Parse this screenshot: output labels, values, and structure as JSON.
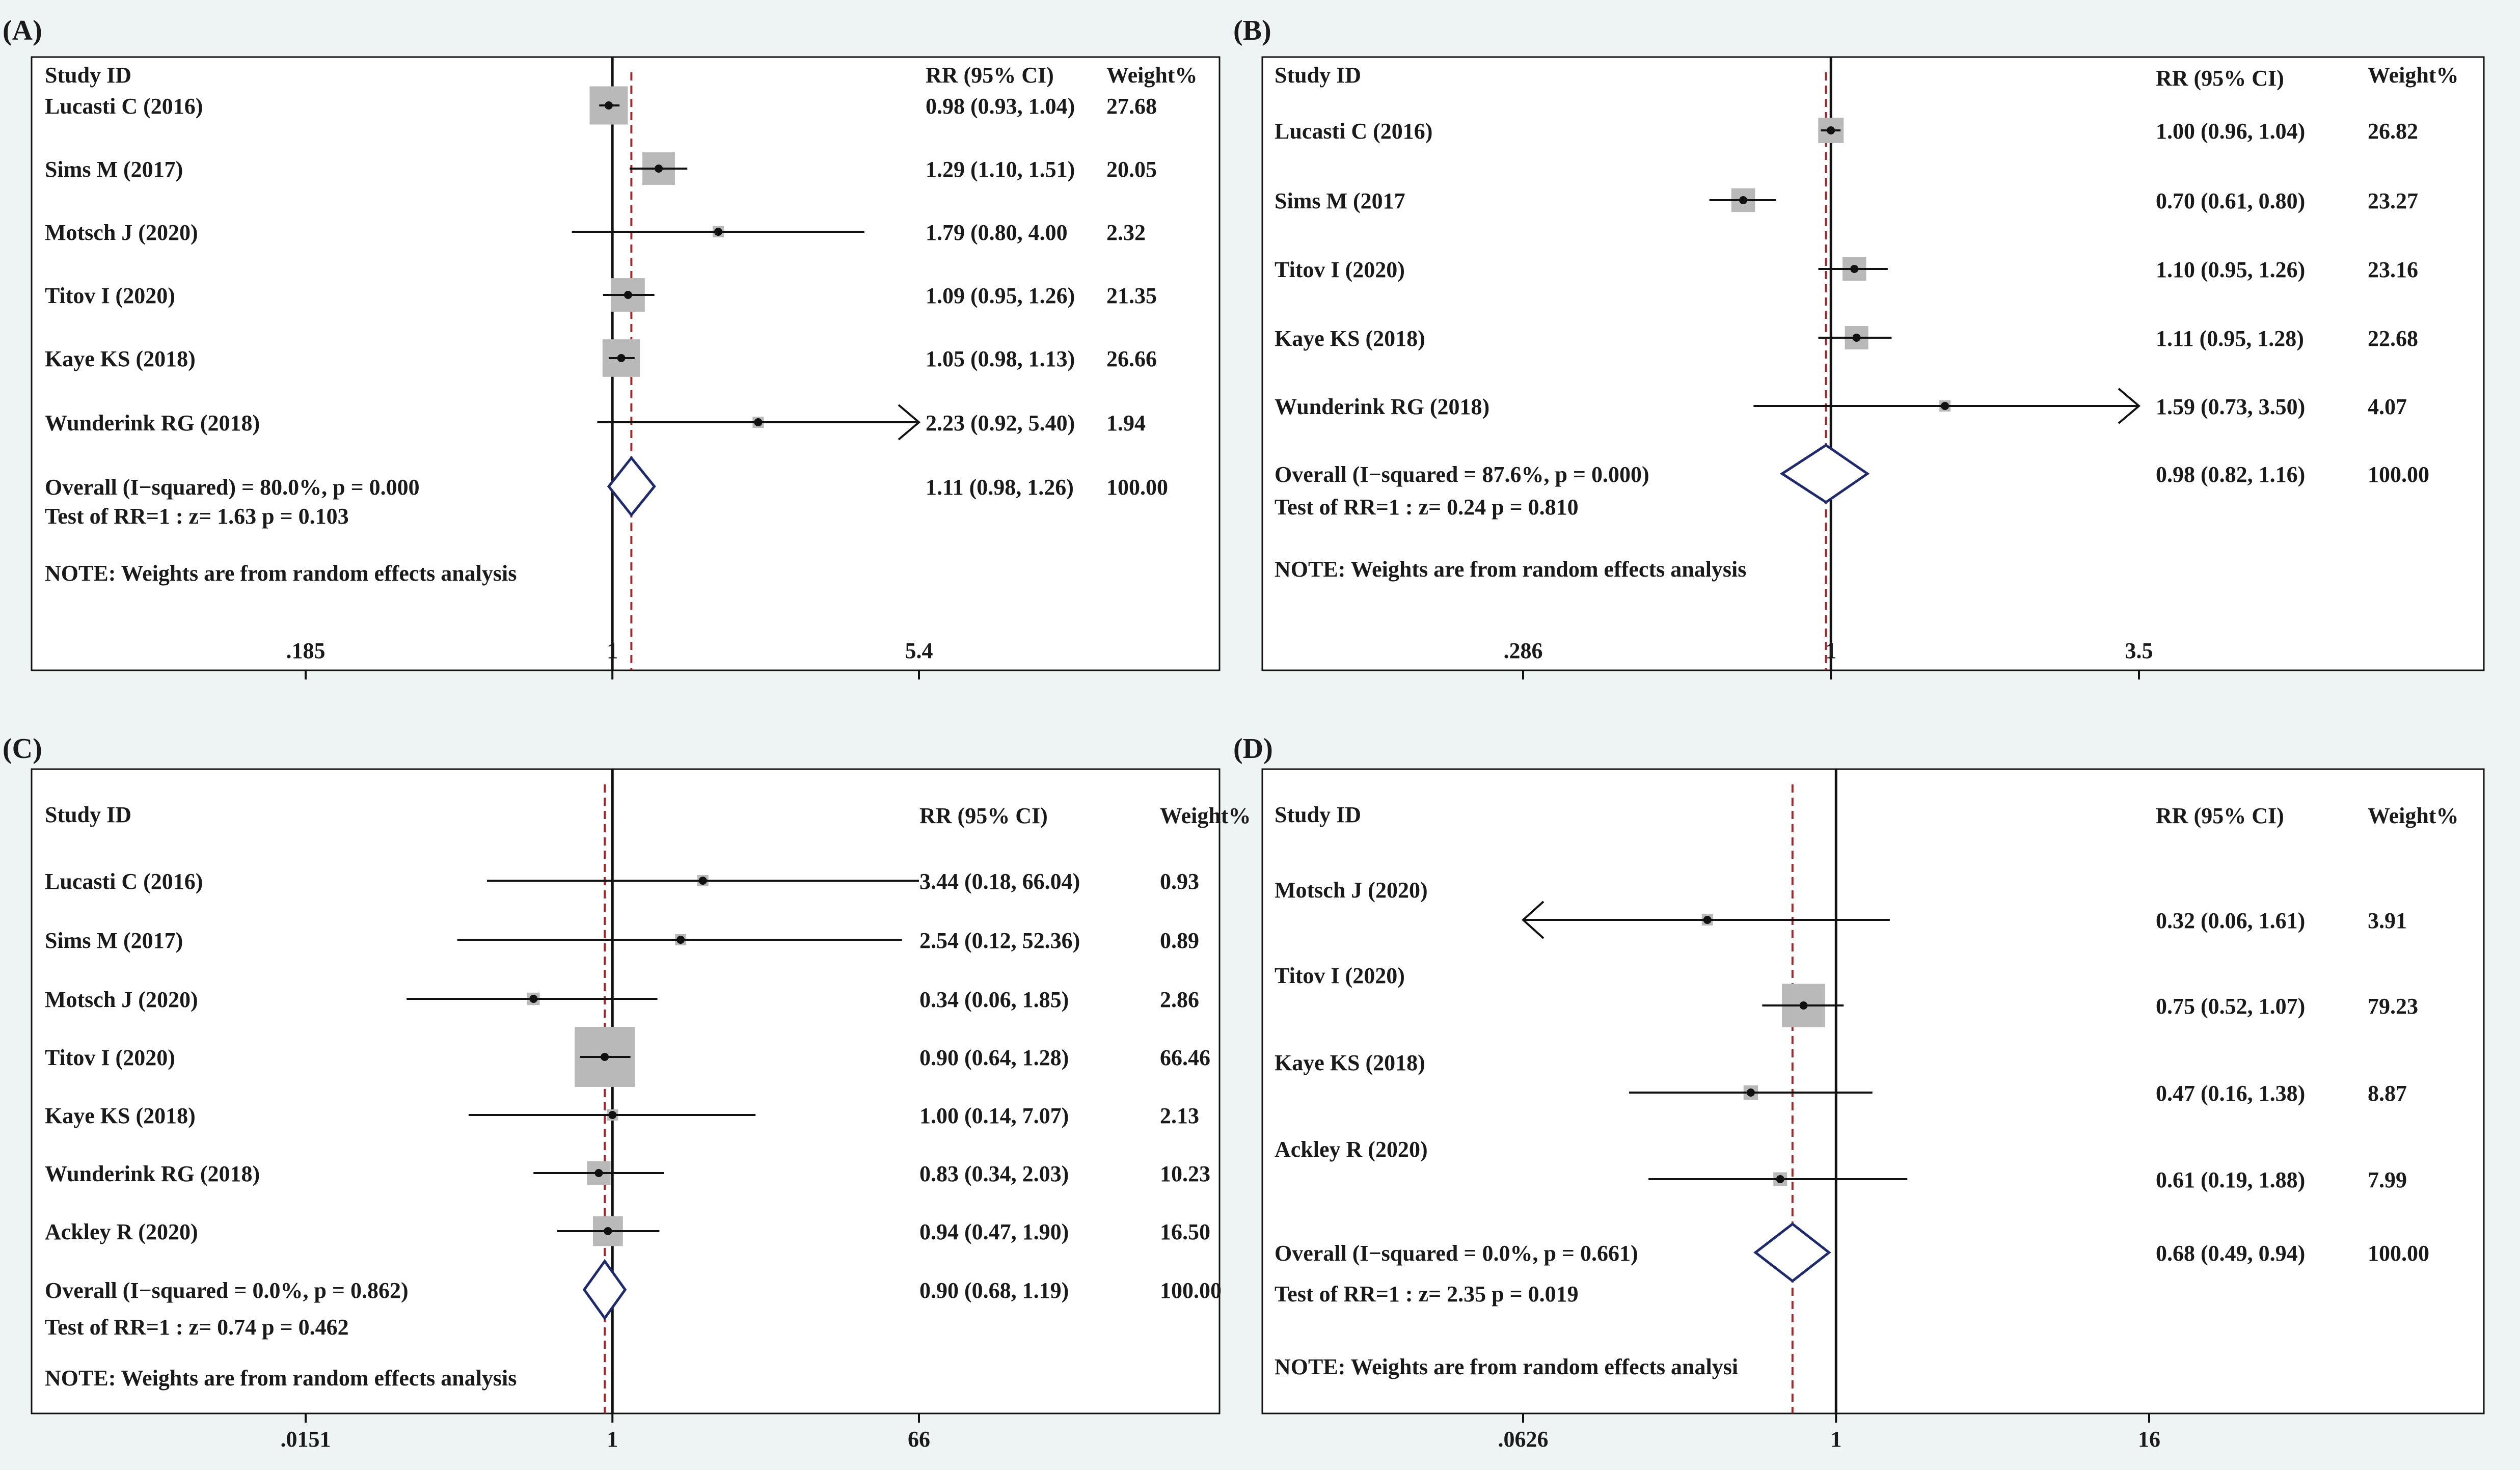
{
  "colors": {
    "background": "#eef4f4",
    "panel": "#ffffff",
    "box": "#b9b9b9",
    "diamond": "#1f2a6b",
    "dashed": "#a0282d",
    "line": "#111111"
  },
  "chart_data": [
    {
      "type": "forest",
      "panel_label": "(A)",
      "headers": {
        "study": "Study ID",
        "ci": "RR (95% CI)",
        "weight": "Weight%"
      },
      "null_value": 1,
      "pooled_rr": 1.11,
      "xscale": "log",
      "xlim": [
        0.185,
        5.4
      ],
      "ticks": [
        {
          "value": 0.185,
          "label": ".185"
        },
        {
          "value": 1,
          "label": "1"
        },
        {
          "value": 5.4,
          "label": "5.4"
        }
      ],
      "studies": [
        {
          "name": "Lucasti C (2016)",
          "rr": 0.98,
          "lo": 0.93,
          "hi": 1.04,
          "ci_text": "0.98 (0.93, 1.04)",
          "weight": 27.68,
          "weight_text": "27.68"
        },
        {
          "name": "Sims M (2017)",
          "rr": 1.29,
          "lo": 1.1,
          "hi": 1.51,
          "ci_text": "1.29 (1.10, 1.51)",
          "weight": 20.05,
          "weight_text": "20.05"
        },
        {
          "name": "Motsch J (2020)",
          "rr": 1.79,
          "lo": 0.8,
          "hi": 4.0,
          "ci_text": "1.79 (0.80, 4.00",
          "weight": 2.32,
          "weight_text": "2.32"
        },
        {
          "name": "Titov I (2020)",
          "rr": 1.09,
          "lo": 0.95,
          "hi": 1.26,
          "ci_text": "1.09 (0.95, 1.26)",
          "weight": 21.35,
          "weight_text": "21.35"
        },
        {
          "name": "Kaye KS (2018)",
          "rr": 1.05,
          "lo": 0.98,
          "hi": 1.13,
          "ci_text": "1.05 (0.98, 1.13)",
          "weight": 26.66,
          "weight_text": "26.66"
        },
        {
          "name": "Wunderink RG (2018)",
          "rr": 2.23,
          "lo": 0.92,
          "hi": 5.4,
          "ci_text": "2.23 (0.92, 5.40)",
          "weight": 1.94,
          "weight_text": "1.94",
          "arrow_right": true
        }
      ],
      "overall": {
        "name": "Overall  (I−squared) = 80.0%, p = 0.000",
        "rr": 1.11,
        "lo": 0.98,
        "hi": 1.26,
        "ci_text": "1.11 (0.98, 1.26)",
        "weight_text": "100.00"
      },
      "test_text": "Test of RR=1 : z=   1.63 p = 0.103",
      "note": "NOTE: Weights are from random effects analysis"
    },
    {
      "type": "forest",
      "panel_label": "(B)",
      "headers": {
        "study": "Study ID",
        "ci": "RR (95% CI)",
        "weight": "Weight%"
      },
      "null_value": 1,
      "pooled_rr": 0.98,
      "xscale": "log",
      "xlim": [
        0.286,
        3.5
      ],
      "ticks": [
        {
          "value": 0.286,
          "label": ".286"
        },
        {
          "value": 1,
          "label": "1"
        },
        {
          "value": 3.5,
          "label": "3.5"
        }
      ],
      "studies": [
        {
          "name": "Lucasti C (2016)",
          "rr": 1.0,
          "lo": 0.96,
          "hi": 1.04,
          "ci_text": "1.00 (0.96, 1.04)",
          "weight": 26.82,
          "weight_text": "26.82"
        },
        {
          "name": "Sims M (2017",
          "rr": 0.7,
          "lo": 0.61,
          "hi": 0.8,
          "ci_text": "0.70 (0.61, 0.80)",
          "weight": 23.27,
          "weight_text": "23.27"
        },
        {
          "name": "Titov I (2020)",
          "rr": 1.1,
          "lo": 0.95,
          "hi": 1.26,
          "ci_text": "1.10 (0.95, 1.26)",
          "weight": 23.16,
          "weight_text": "23.16"
        },
        {
          "name": "Kaye KS (2018)",
          "rr": 1.11,
          "lo": 0.95,
          "hi": 1.28,
          "ci_text": "1.11 (0.95, 1.28)",
          "weight": 22.68,
          "weight_text": "22.68"
        },
        {
          "name": "Wunderink RG (2018)",
          "rr": 1.59,
          "lo": 0.73,
          "hi": 3.5,
          "ci_text": "1.59 (0.73, 3.50)",
          "weight": 4.07,
          "weight_text": "4.07",
          "arrow_right": true
        }
      ],
      "overall": {
        "name": "Overall  (I−squared = 87.6%, p = 0.000)",
        "rr": 0.98,
        "lo": 0.82,
        "hi": 1.16,
        "ci_text": "0.98 (0.82, 1.16)",
        "weight_text": "100.00"
      },
      "test_text": "Test of RR=1 : z=   0.24 p = 0.810",
      "note": "NOTE: Weights are from random effects analysis"
    },
    {
      "type": "forest",
      "panel_label": "(C)",
      "headers": {
        "study": "Study ID",
        "ci": "RR (95% CI)",
        "weight": "Weight%"
      },
      "null_value": 1,
      "pooled_rr": 0.9,
      "xscale": "log",
      "xlim": [
        0.0151,
        66
      ],
      "ticks": [
        {
          "value": 0.0151,
          "label": ".0151"
        },
        {
          "value": 1,
          "label": "1"
        },
        {
          "value": 66,
          "label": "66"
        }
      ],
      "studies": [
        {
          "name": "Lucasti C (2016)",
          "rr": 3.44,
          "lo": 0.18,
          "hi": 66.04,
          "ci_text": "3.44 (0.18, 66.04)",
          "weight": 0.93,
          "weight_text": "0.93"
        },
        {
          "name": "Sims M (2017)",
          "rr": 2.54,
          "lo": 0.12,
          "hi": 52.36,
          "ci_text": "2.54 (0.12, 52.36)",
          "weight": 0.89,
          "weight_text": "0.89"
        },
        {
          "name": "Motsch J (2020)",
          "rr": 0.34,
          "lo": 0.06,
          "hi": 1.85,
          "ci_text": "0.34 (0.06, 1.85)",
          "weight": 2.86,
          "weight_text": "2.86"
        },
        {
          "name": "Titov I (2020)",
          "rr": 0.9,
          "lo": 0.64,
          "hi": 1.28,
          "ci_text": "0.90 (0.64, 1.28)",
          "weight": 66.46,
          "weight_text": "66.46"
        },
        {
          "name": "Kaye KS (2018)",
          "rr": 1.0,
          "lo": 0.14,
          "hi": 7.07,
          "ci_text": "1.00 (0.14, 7.07)",
          "weight": 2.13,
          "weight_text": "2.13"
        },
        {
          "name": "Wunderink RG (2018)",
          "rr": 0.83,
          "lo": 0.34,
          "hi": 2.03,
          "ci_text": "0.83 (0.34, 2.03)",
          "weight": 10.23,
          "weight_text": "10.23"
        },
        {
          "name": "Ackley R (2020)",
          "rr": 0.94,
          "lo": 0.47,
          "hi": 1.9,
          "ci_text": "0.94 (0.47, 1.90)",
          "weight": 16.5,
          "weight_text": "16.50"
        }
      ],
      "overall": {
        "name": "Overall  (I−squared = 0.0%, p = 0.862)",
        "rr": 0.9,
        "lo": 0.68,
        "hi": 1.19,
        "ci_text": "0.90 (0.68, 1.19)",
        "weight_text": "100.00"
      },
      "test_text": "Test of RR=1 : z=   0.74 p = 0.462",
      "note": "NOTE: Weights are from random effects analysis"
    },
    {
      "type": "forest",
      "panel_label": "(D)",
      "headers": {
        "study": "Study ID",
        "ci": "RR (95% CI)",
        "weight": "Weight%"
      },
      "null_value": 1,
      "pooled_rr": 0.68,
      "xscale": "log",
      "xlim": [
        0.0626,
        16
      ],
      "ticks": [
        {
          "value": 0.0626,
          "label": ".0626"
        },
        {
          "value": 1,
          "label": "1"
        },
        {
          "value": 16,
          "label": "16"
        }
      ],
      "studies": [
        {
          "name": "Motsch J (2020)",
          "rr": 0.32,
          "lo": 0.06,
          "hi": 1.61,
          "ci_text": "0.32 (0.06, 1.61)",
          "weight": 3.91,
          "weight_text": "3.91",
          "arrow_left": true
        },
        {
          "name": "Titov I (2020)",
          "rr": 0.75,
          "lo": 0.52,
          "hi": 1.07,
          "ci_text": "0.75 (0.52, 1.07)",
          "weight": 79.23,
          "weight_text": "79.23"
        },
        {
          "name": "Kaye KS (2018)",
          "rr": 0.47,
          "lo": 0.16,
          "hi": 1.38,
          "ci_text": "0.47 (0.16, 1.38)",
          "weight": 8.87,
          "weight_text": "8.87"
        },
        {
          "name": "Ackley R (2020)",
          "rr": 0.61,
          "lo": 0.19,
          "hi": 1.88,
          "ci_text": "0.61 (0.19, 1.88)",
          "weight": 7.99,
          "weight_text": "7.99"
        }
      ],
      "overall": {
        "name": "Overall  (I−squared = 0.0%, p = 0.661)",
        "rr": 0.68,
        "lo": 0.49,
        "hi": 0.94,
        "ci_text": "0.68 (0.49, 0.94)",
        "weight_text": "100.00"
      },
      "test_text": "Test of RR=1 : z=   2.35 p = 0.019",
      "note": "NOTE: Weights are frоm random effects analysi"
    }
  ]
}
